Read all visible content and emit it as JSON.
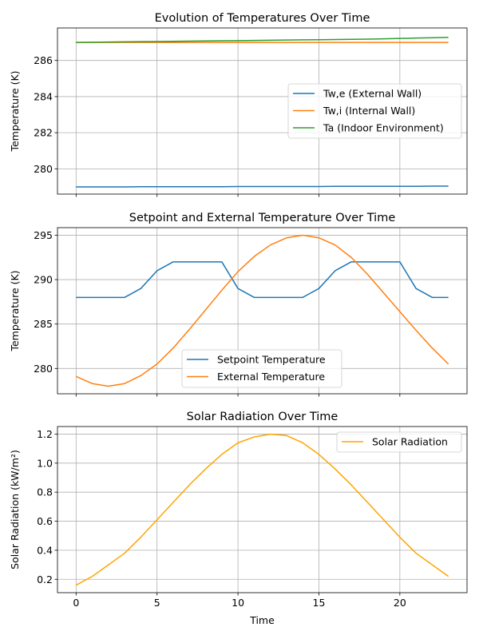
{
  "chart_data": [
    {
      "type": "line",
      "title": "Evolution of Temperatures Over Time",
      "xlabel": "",
      "ylabel": "Temperature (K)",
      "xlim": [
        -1.15,
        24.15
      ],
      "ylim": [
        278.6,
        287.8
      ],
      "xticks": [
        0,
        5,
        10,
        15,
        20
      ],
      "show_xtick_labels": false,
      "yticks": [
        280,
        282,
        284,
        286
      ],
      "grid": true,
      "legend_position": "center-right",
      "x": [
        0,
        1,
        2,
        3,
        4,
        5,
        6,
        7,
        8,
        9,
        10,
        11,
        12,
        13,
        14,
        15,
        16,
        17,
        18,
        19,
        20,
        21,
        22,
        23
      ],
      "series": [
        {
          "name": "Tw,e (External Wall)",
          "color": "#1f77b4",
          "values": [
            279.0,
            279.0,
            279.0,
            279.0,
            279.01,
            279.01,
            279.01,
            279.01,
            279.01,
            279.01,
            279.02,
            279.02,
            279.02,
            279.02,
            279.02,
            279.02,
            279.03,
            279.03,
            279.03,
            279.03,
            279.03,
            279.03,
            279.04,
            279.04
          ]
        },
        {
          "name": "Tw,i (Internal Wall)",
          "color": "#ff7f0e",
          "values": [
            287.0,
            287.0,
            287.0,
            287.0,
            287.0,
            287.0,
            287.0,
            287.0,
            287.0,
            287.0,
            287.0,
            287.0,
            287.0,
            287.0,
            287.0,
            287.0,
            287.0,
            287.0,
            287.0,
            287.0,
            287.0,
            287.0,
            287.0,
            287.0
          ]
        },
        {
          "name": "Ta (Indoor Environment)",
          "color": "#2ca02c",
          "values": [
            287.0,
            287.01,
            287.02,
            287.03,
            287.04,
            287.05,
            287.06,
            287.07,
            287.08,
            287.09,
            287.1,
            287.11,
            287.12,
            287.13,
            287.14,
            287.15,
            287.16,
            287.17,
            287.18,
            287.2,
            287.22,
            287.24,
            287.26,
            287.28
          ]
        }
      ]
    },
    {
      "type": "line",
      "title": "Setpoint and External Temperature Over Time",
      "xlabel": "",
      "ylabel": "Temperature (K)",
      "xlim": [
        -1.15,
        24.15
      ],
      "ylim": [
        277.15,
        295.85
      ],
      "xticks": [
        0,
        5,
        10,
        15,
        20
      ],
      "show_xtick_labels": false,
      "yticks": [
        280,
        285,
        290,
        295
      ],
      "grid": true,
      "legend_position": "lower-center",
      "x": [
        0,
        1,
        2,
        3,
        4,
        5,
        6,
        7,
        8,
        9,
        10,
        11,
        12,
        13,
        14,
        15,
        16,
        17,
        18,
        19,
        20,
        21,
        22,
        23
      ],
      "series": [
        {
          "name": "Setpoint Temperature",
          "color": "#1f77b4",
          "values": [
            288,
            288,
            288,
            288,
            289,
            291,
            292,
            292,
            292,
            292,
            289,
            288,
            288,
            288,
            288,
            289,
            291,
            292,
            292,
            292,
            292,
            289,
            288,
            288
          ]
        },
        {
          "name": "External Temperature",
          "color": "#ff7f0e",
          "values": [
            279.1,
            278.3,
            278.0,
            278.3,
            279.2,
            280.5,
            282.3,
            284.4,
            286.6,
            288.8,
            290.9,
            292.6,
            293.9,
            294.7,
            295.0,
            294.7,
            293.9,
            292.5,
            290.6,
            288.5,
            286.4,
            284.3,
            282.3,
            280.5
          ]
        }
      ]
    },
    {
      "type": "line",
      "title": "Solar Radiation Over Time",
      "xlabel": "Time",
      "ylabel": "Solar Radiation (kW/m²)",
      "xlim": [
        -1.15,
        24.15
      ],
      "ylim": [
        0.108,
        1.252
      ],
      "xticks": [
        0,
        5,
        10,
        15,
        20
      ],
      "show_xtick_labels": true,
      "yticks": [
        0.2,
        0.4,
        0.6,
        0.8,
        1.0,
        1.2
      ],
      "ytick_labels": [
        "0.2",
        "0.4",
        "0.6",
        "0.8",
        "1.0",
        "1.2"
      ],
      "grid": true,
      "legend_position": "upper-right",
      "x": [
        0,
        1,
        2,
        3,
        4,
        5,
        6,
        7,
        8,
        9,
        10,
        11,
        12,
        13,
        14,
        15,
        16,
        17,
        18,
        19,
        20,
        21,
        22,
        23
      ],
      "series": [
        {
          "name": "Solar Radiation",
          "color": "#ffa500",
          "values": [
            0.16,
            0.22,
            0.3,
            0.38,
            0.49,
            0.61,
            0.73,
            0.85,
            0.96,
            1.06,
            1.14,
            1.18,
            1.2,
            1.19,
            1.14,
            1.06,
            0.96,
            0.85,
            0.73,
            0.61,
            0.49,
            0.38,
            0.3,
            0.22
          ]
        }
      ]
    }
  ]
}
